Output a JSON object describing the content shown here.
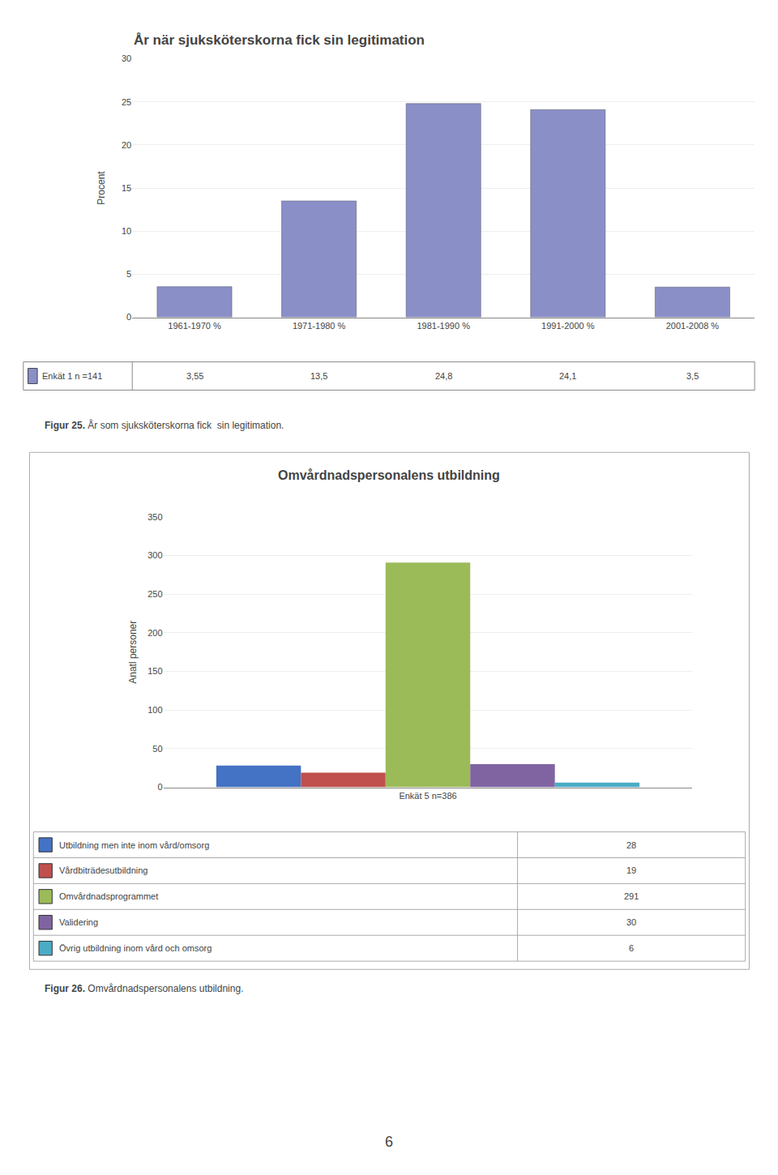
{
  "chart_data": [
    {
      "type": "bar",
      "title": "År när sjuksköterskorna fick sin legitimation",
      "categories": [
        "1961-1970 %",
        "1971-1980 %",
        "1981-1990 %",
        "1991-2000 %",
        "2001-2008 %"
      ],
      "series": [
        {
          "name": "Enkät 1 n =141",
          "color": "#8B8FC8",
          "values": [
            3.55,
            13.5,
            24.8,
            24.1,
            3.5
          ],
          "value_labels": [
            "3,55",
            "13,5",
            "24,8",
            "24,1",
            "3,5"
          ]
        }
      ],
      "ylabel": "Procent",
      "ylim": [
        0,
        30
      ],
      "yticks": [
        0,
        5,
        10,
        15,
        20,
        25,
        30
      ],
      "grid": true,
      "caption": [
        "Figur 25.",
        " År som sjuksköterskorna fick  sin legitimation."
      ]
    },
    {
      "type": "bar",
      "title": "Omvårdnadspersonalens utbildning",
      "categories": [
        "Enkät 5 n=386"
      ],
      "series": [
        {
          "name": "Utbildning men inte inom vård/omsorg",
          "color": "#4472C4",
          "values": [
            28
          ]
        },
        {
          "name": "Vårdbiträdesutbildning",
          "color": "#C0504D",
          "values": [
            19
          ]
        },
        {
          "name": "Omvårdnadsprogrammet",
          "color": "#9BBB59",
          "values": [
            291
          ]
        },
        {
          "name": "Validering",
          "color": "#8064A2",
          "values": [
            30
          ]
        },
        {
          "name": "Övrig utbildning inom vård och omsorg",
          "color": "#4BACC6",
          "values": [
            6
          ]
        }
      ],
      "ylabel": "Anatl personer",
      "ylim": [
        0,
        350
      ],
      "yticks": [
        0,
        50,
        100,
        150,
        200,
        250,
        300,
        350
      ],
      "grid": true,
      "caption": [
        "Figur 26.",
        " Omvårdnadspersonalens utbildning."
      ]
    }
  ],
  "page_number": "6"
}
